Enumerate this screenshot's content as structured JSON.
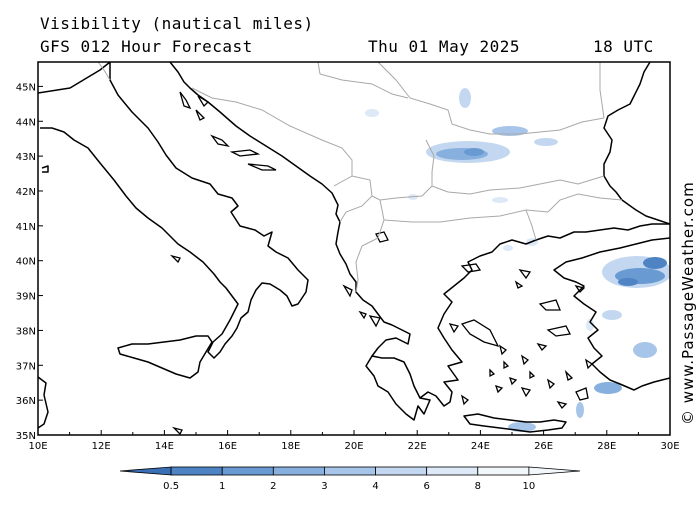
{
  "header": {
    "title": "Visibility (nautical miles)",
    "subtitle": "GFS 012 Hour Forecast",
    "date": "Thu 01 May 2025",
    "time": "18 UTC"
  },
  "watermark": "© www.PassageWeather.com",
  "map": {
    "lon_range": [
      10,
      30
    ],
    "lat_range": [
      35,
      45.7
    ],
    "lon_labels": [
      "10E",
      "12E",
      "14E",
      "16E",
      "18E",
      "20E",
      "22E",
      "24E",
      "26E",
      "28E",
      "30E"
    ],
    "lat_labels": [
      "35N",
      "36N",
      "37N",
      "38N",
      "39N",
      "40N",
      "41N",
      "42N",
      "43N",
      "44N",
      "45N"
    ],
    "coastline_color": "#000000",
    "border_color": "#a8a8a8"
  },
  "legend": {
    "labels": [
      "0.5",
      "1",
      "2",
      "3",
      "4",
      "6",
      "8",
      "10"
    ],
    "colors": [
      "#3a6fb5",
      "#4f84c4",
      "#6a9ad2",
      "#88b0de",
      "#a7c5e8",
      "#c3d8f0",
      "#dde9f7",
      "#f2f7fc"
    ]
  },
  "chart_data": {
    "type": "heatmap",
    "variable": "Visibility (nautical miles)",
    "low_visibility_areas": [
      {
        "lon": 23.3,
        "lat": 43.2,
        "level": "2-3"
      },
      {
        "lon": 28.6,
        "lat": 39.8,
        "level": "1-2"
      },
      {
        "lon": 29.0,
        "lat": 40.3,
        "level": "1-2"
      },
      {
        "lon": 28.9,
        "lat": 38.0,
        "level": "3-4"
      },
      {
        "lon": 27.5,
        "lat": 36.9,
        "level": "2-4"
      },
      {
        "lon": 25.5,
        "lat": 35.0,
        "level": "3-4"
      },
      {
        "lon": 24.3,
        "lat": 44.0,
        "level": "4-6"
      },
      {
        "lon": 19.1,
        "lat": 43.6,
        "level": "6-8"
      },
      {
        "lon": 23.5,
        "lat": 45.0,
        "level": "6-8"
      },
      {
        "lon": 26.0,
        "lat": 43.4,
        "level": "6-8"
      },
      {
        "lon": 23.3,
        "lat": 41.9,
        "level": "6-8"
      }
    ]
  }
}
